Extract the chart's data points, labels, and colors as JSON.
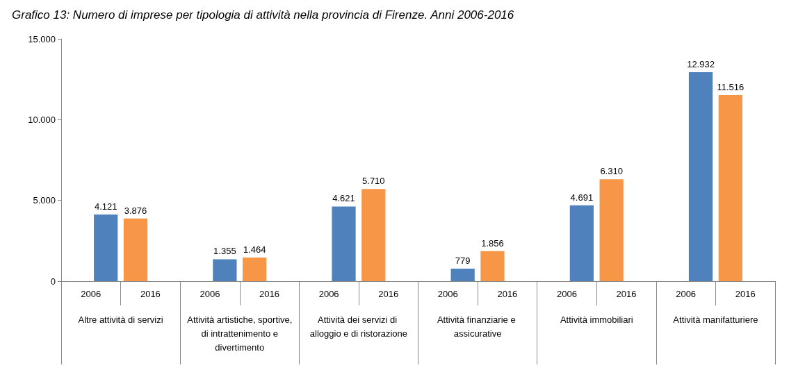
{
  "chart_data": {
    "type": "bar",
    "title": "Grafico 13: Numero di imprese per tipologia di attività nella provincia di Firenze. Anni 2006-2016",
    "categories": [
      "Altre attività di servizi",
      "Attività artistiche, sportive, di intrattenimento e divertimento",
      "Attività dei servizi di alloggio e di ristorazione",
      "Attività finanziarie e assicurative",
      "Attività immobiliari",
      "Attività manifatturiere"
    ],
    "series": [
      {
        "name": "2006",
        "color": "#4f81bd",
        "values": [
          4121,
          1355,
          4621,
          779,
          4691,
          12932
        ],
        "value_labels": [
          "4.121",
          "1.355",
          "4.621",
          "779",
          "4.691",
          "12.932"
        ]
      },
      {
        "name": "2016",
        "color": "#f79646",
        "values": [
          3876,
          1464,
          5710,
          1856,
          6310,
          11516
        ],
        "value_labels": [
          "3.876",
          "1.464",
          "5.710",
          "1.856",
          "6.310",
          "11.516"
        ]
      }
    ],
    "ylim": [
      0,
      15000
    ],
    "yticks": [
      0,
      {
        "value": 5000,
        "label": "5.000"
      },
      {
        "value": 10000,
        "label": "10.000"
      },
      {
        "value": 15000,
        "label": "15.000"
      }
    ],
    "grid": false,
    "legend": false
  }
}
